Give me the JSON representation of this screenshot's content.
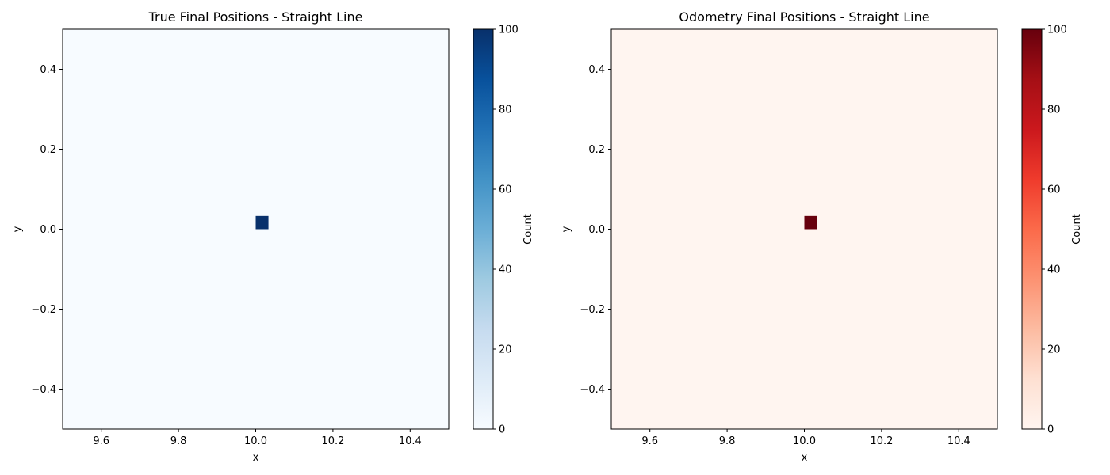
{
  "chart_data": [
    {
      "type": "heatmap",
      "title": "True Final Positions - Straight Line",
      "xlabel": "x",
      "ylabel": "y",
      "xlim": [
        9.5,
        10.5
      ],
      "ylim": [
        -0.5,
        0.5
      ],
      "xticks": [
        9.6,
        9.8,
        10.0,
        10.2,
        10.4
      ],
      "xtick_labels": [
        "9.6",
        "9.8",
        "10.0",
        "10.2",
        "10.4"
      ],
      "yticks": [
        0.4,
        0.2,
        0.0,
        -0.2,
        -0.4
      ],
      "ytick_labels": [
        "0.4",
        "0.2",
        "0.0",
        "−0.2",
        "−0.4"
      ],
      "cells": [
        {
          "x0": 10.0,
          "x1": 10.033,
          "y0": 0.0,
          "y1": 0.033,
          "count": 100
        }
      ],
      "colormap": "Blues",
      "colormap_stops": [
        "#f7fbff",
        "#deebf7",
        "#c6dbef",
        "#9ecae1",
        "#6baed6",
        "#4292c6",
        "#2171b5",
        "#08519c",
        "#08306b"
      ],
      "colorbar": {
        "label": "Count",
        "range": [
          0,
          100
        ],
        "ticks": [
          0,
          20,
          40,
          60,
          80,
          100
        ],
        "tick_labels": [
          "0",
          "20",
          "40",
          "60",
          "80",
          "100"
        ]
      }
    },
    {
      "type": "heatmap",
      "title": "Odometry Final Positions - Straight Line",
      "xlabel": "x",
      "ylabel": "y",
      "xlim": [
        9.5,
        10.5
      ],
      "ylim": [
        -0.5,
        0.5
      ],
      "xticks": [
        9.6,
        9.8,
        10.0,
        10.2,
        10.4
      ],
      "xtick_labels": [
        "9.6",
        "9.8",
        "10.0",
        "10.2",
        "10.4"
      ],
      "yticks": [
        0.4,
        0.2,
        0.0,
        -0.2,
        -0.4
      ],
      "ytick_labels": [
        "0.4",
        "0.2",
        "0.0",
        "−0.2",
        "−0.4"
      ],
      "cells": [
        {
          "x0": 10.0,
          "x1": 10.033,
          "y0": 0.0,
          "y1": 0.033,
          "count": 100
        }
      ],
      "colormap": "Reds",
      "colormap_stops": [
        "#fff5f0",
        "#fee0d2",
        "#fcbba1",
        "#fc9272",
        "#fb6a4a",
        "#ef3b2c",
        "#cb181d",
        "#a50f15",
        "#67000d"
      ],
      "colorbar": {
        "label": "Count",
        "range": [
          0,
          100
        ],
        "ticks": [
          0,
          20,
          40,
          60,
          80,
          100
        ],
        "tick_labels": [
          "0",
          "20",
          "40",
          "60",
          "80",
          "100"
        ]
      }
    }
  ]
}
